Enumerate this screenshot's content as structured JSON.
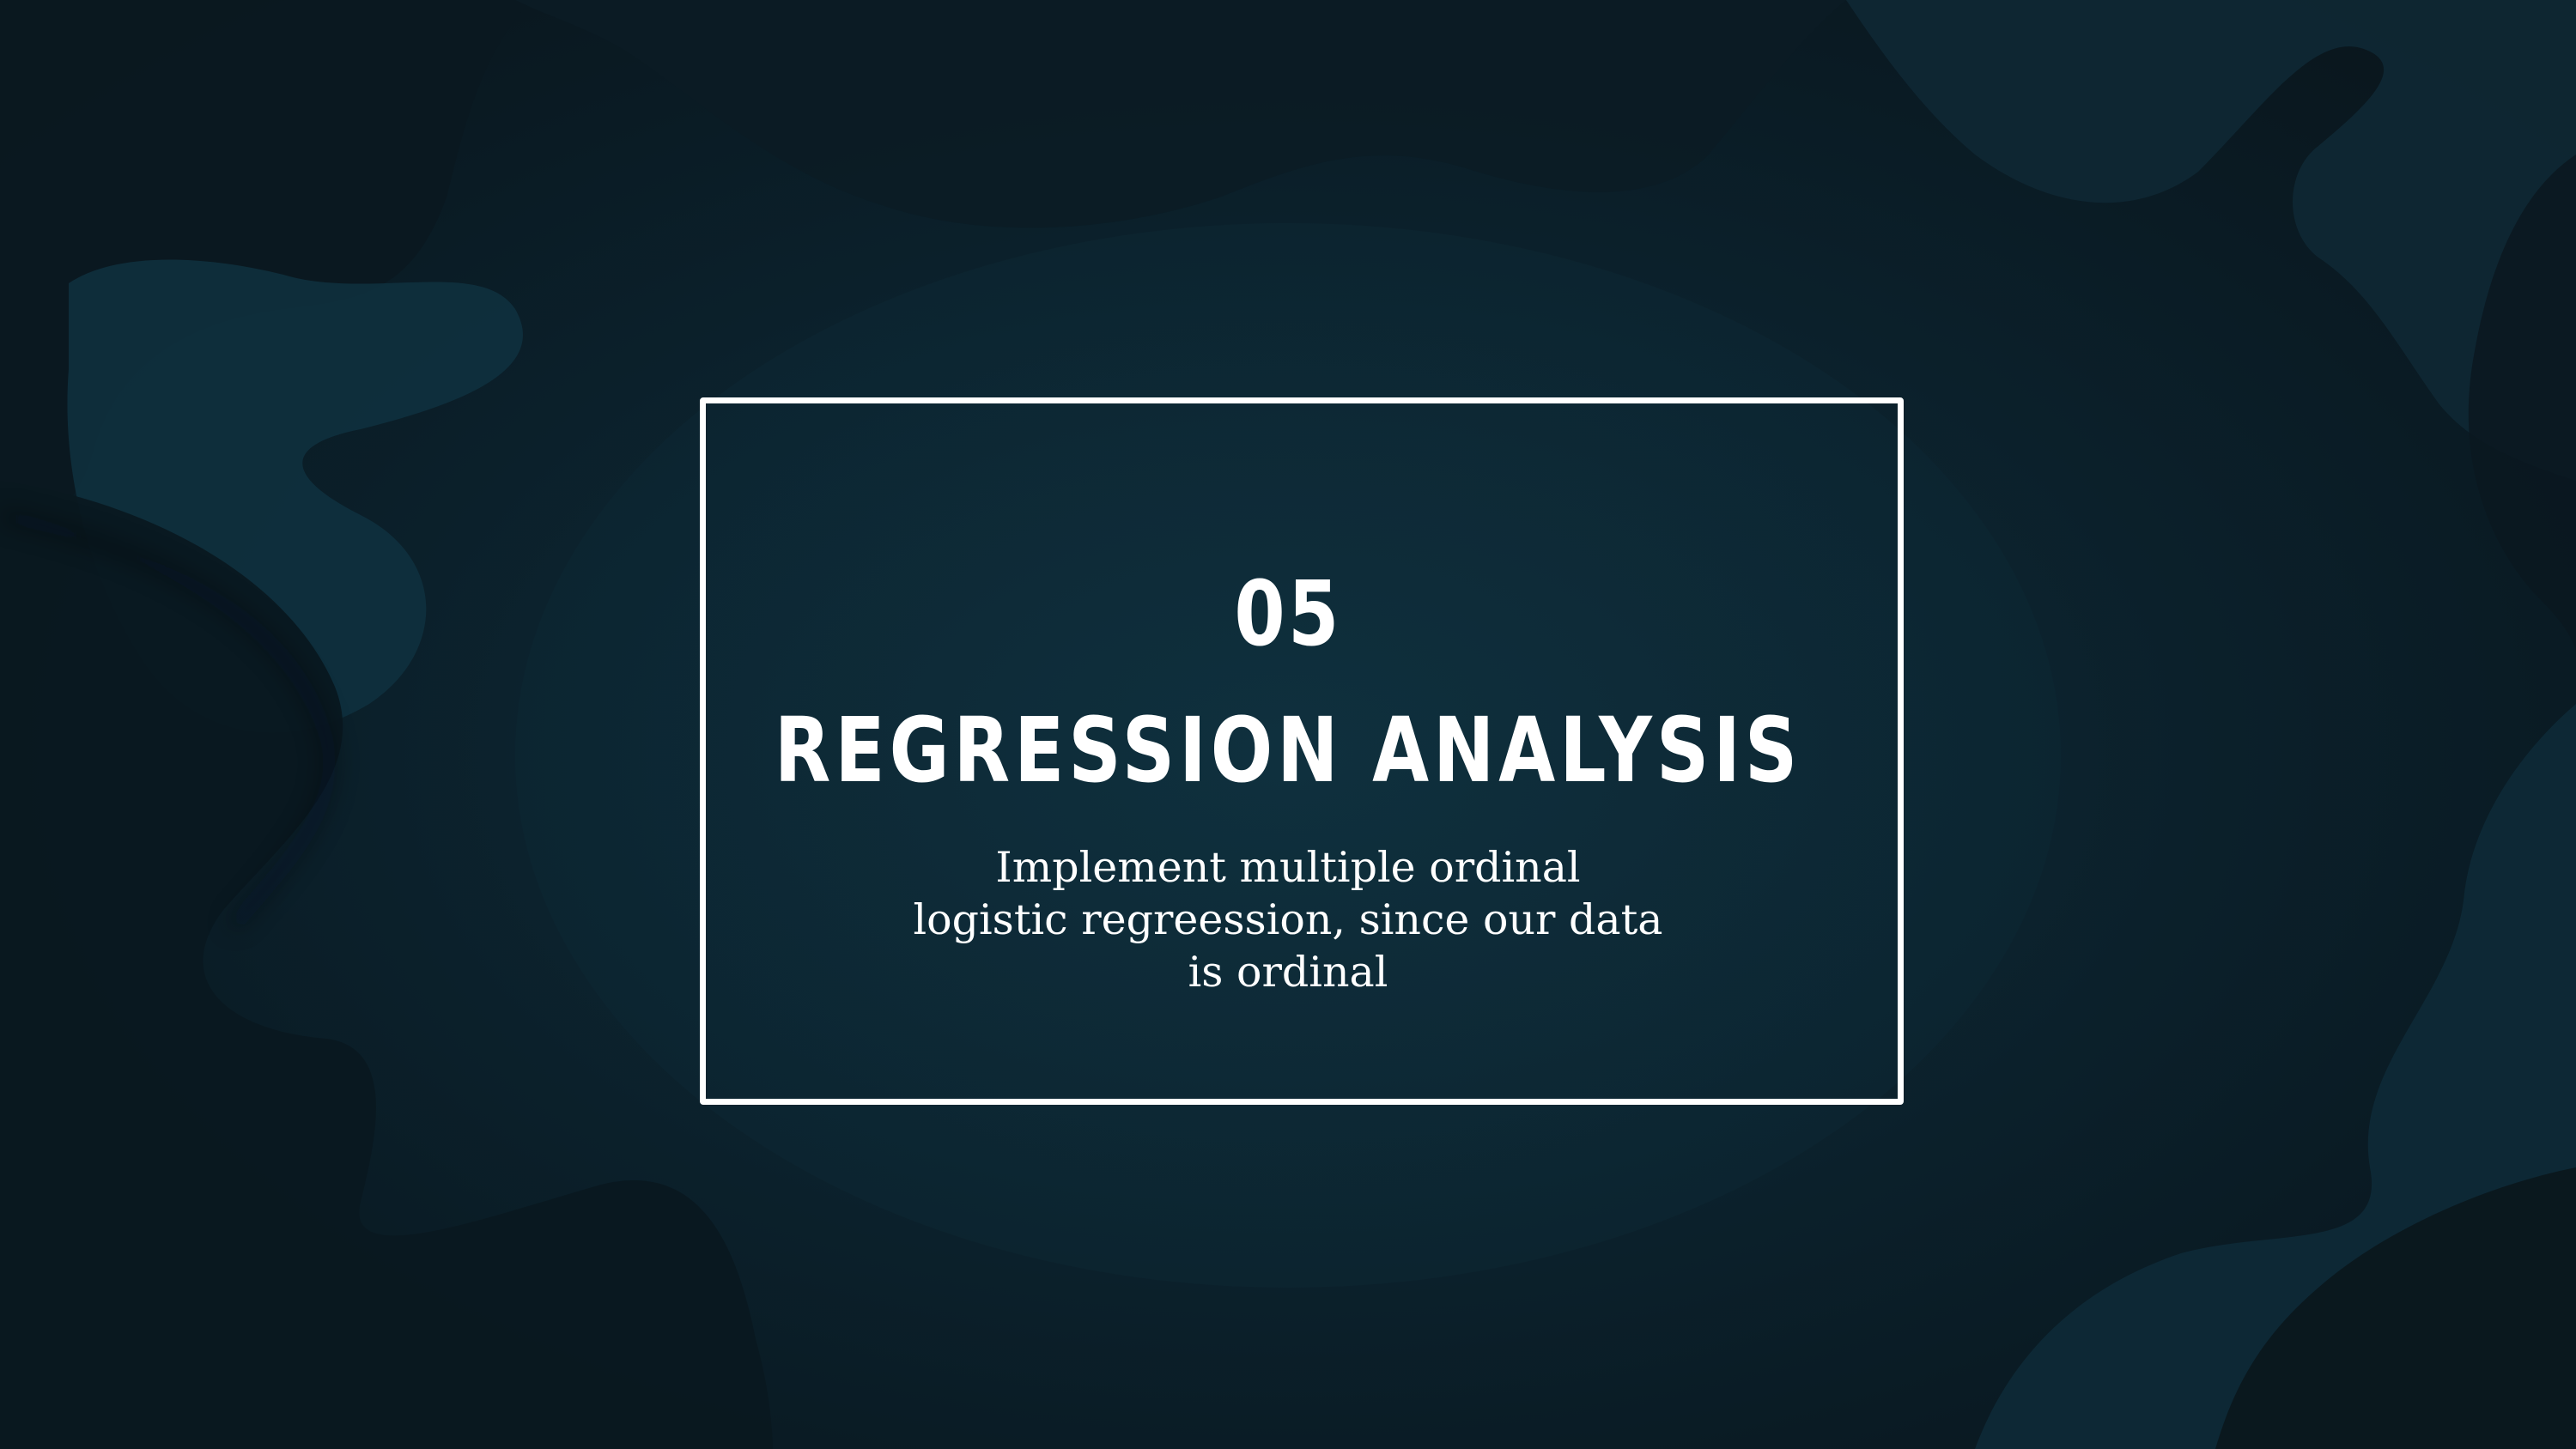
{
  "slide": {
    "number": "05",
    "title": "REGRESSION ANALYSIS",
    "description": "Implement multiple ordinal\nlogistic regreession, since our data\nis ordinal"
  },
  "colors": {
    "background": "#0c2430",
    "background_dark": "#0a141a",
    "shape_teal": "#0f3340",
    "frame": "#ffffff",
    "text": "#ffffff"
  }
}
